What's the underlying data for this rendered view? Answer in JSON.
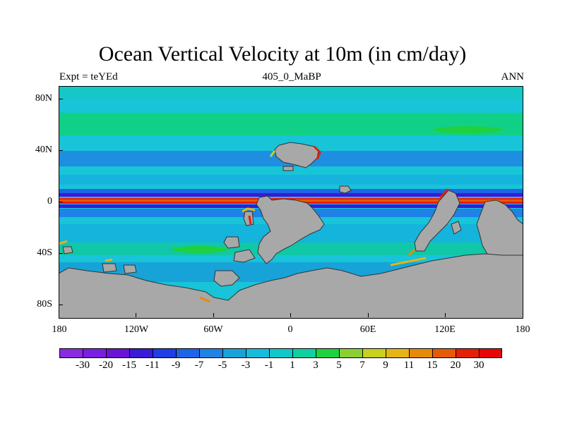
{
  "title": "Ocean Vertical Velocity at 10m (in cm/day)",
  "left_string": "Expt = teYEd",
  "center_string": "405_0_MaBP",
  "right_string": "ANN",
  "y_ticks": [
    "80N",
    "40N",
    "0",
    "40S",
    "80S"
  ],
  "x_ticks": [
    "180",
    "120W",
    "60W",
    "0",
    "60E",
    "120E",
    "180"
  ],
  "colorbar": {
    "labels": [
      "-30",
      "-20",
      "-15",
      "-11",
      "-9",
      "-7",
      "-5",
      "-3",
      "-1",
      "1",
      "3",
      "5",
      "7",
      "9",
      "11",
      "15",
      "20",
      "30"
    ],
    "colors": [
      "#8a2be2",
      "#7a1fe0",
      "#6a14d6",
      "#3a1ad8",
      "#1e3ee6",
      "#1e64e6",
      "#1e82e6",
      "#17a3d8",
      "#17bcdc",
      "#10c8c8",
      "#10d0a0",
      "#20d040",
      "#8ad030",
      "#c8d020",
      "#e6b414",
      "#e68a0a",
      "#e65a06",
      "#e61e06",
      "#e60606"
    ]
  },
  "colors": {
    "land": "#a8a8a8",
    "ocean_base": "#18c4d8"
  }
}
